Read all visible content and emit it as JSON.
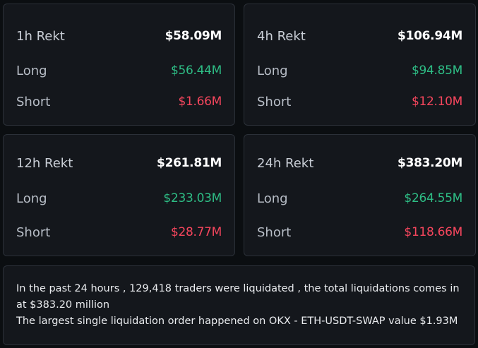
{
  "cards": [
    {
      "title": "1h Rekt",
      "total": "$58.09M",
      "long_label": "Long",
      "long": "$56.44M",
      "short_label": "Short",
      "short": "$1.66M"
    },
    {
      "title": "4h Rekt",
      "total": "$106.94M",
      "long_label": "Long",
      "long": "$94.85M",
      "short_label": "Short",
      "short": "$12.10M"
    },
    {
      "title": "12h Rekt",
      "total": "$261.81M",
      "long_label": "Long",
      "long": "$233.03M",
      "short_label": "Short",
      "short": "$28.77M"
    },
    {
      "title": "24h Rekt",
      "total": "$383.20M",
      "long_label": "Long",
      "long": "$264.55M",
      "short_label": "Short",
      "short": "$118.66M"
    }
  ],
  "summary": {
    "line1": "In the past 24 hours , 129,418 traders were liquidated , the total liquidations comes in",
    "line2": "at $383.20 million",
    "line3": "The largest single liquidation order happened on OKX - ETH-USDT-SWAP value $1.93M"
  },
  "colors": {
    "background": "#0b0e11",
    "card": "#14171c",
    "border": "#2b3038",
    "long": "#2ebd85",
    "short": "#f6465d",
    "total": "#ffffff"
  }
}
